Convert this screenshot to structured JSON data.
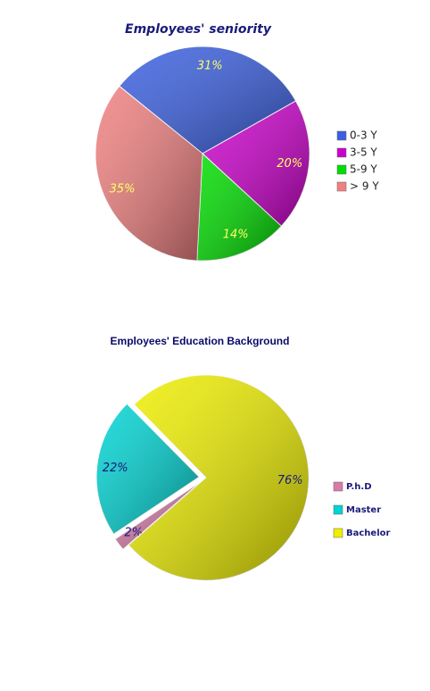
{
  "chart_data": [
    {
      "type": "pie",
      "title": "Employees' seniority",
      "categories": [
        "0-3 Y",
        "3-5 Y",
        "5-9 Y",
        "> 9 Y"
      ],
      "values": [
        31,
        20,
        14,
        35
      ],
      "value_labels": [
        "31%",
        "20%",
        "14%",
        "35%"
      ],
      "colors": [
        "#3a5fe0",
        "#cc00cc",
        "#00dd00",
        "#f08080"
      ]
    },
    {
      "type": "pie",
      "title": "Employees' Education Background",
      "categories": [
        "P.h.D",
        "Master",
        "Bachelor"
      ],
      "values": [
        2,
        22,
        76
      ],
      "value_labels": [
        "2%",
        "22%",
        "76%"
      ],
      "colors": [
        "#d87aa8",
        "#00d4d4",
        "#eeee00"
      ]
    }
  ]
}
